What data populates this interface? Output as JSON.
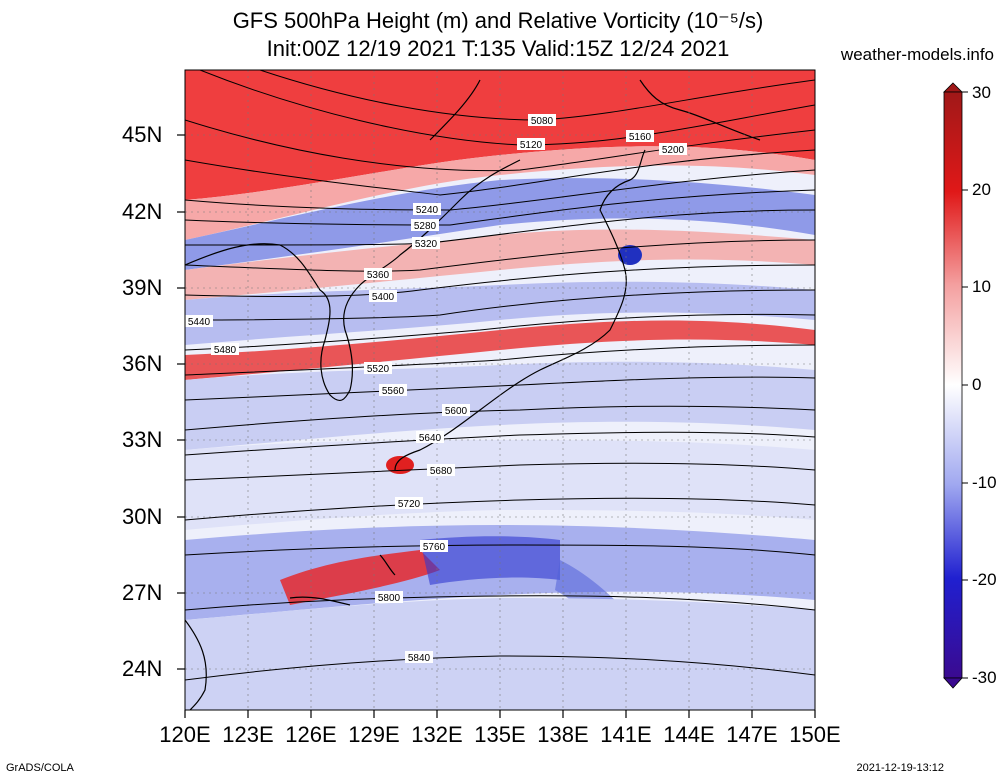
{
  "header": {
    "title_line1": "GFS 500hPa Height (m) and Relative Vorticity (10⁻⁵/s)",
    "title_line2": "Init:00Z 12/19 2021 T:135 Valid:15Z 12/24 2021",
    "site": "weather-models.info"
  },
  "axes": {
    "lat_labels": [
      "45N",
      "42N",
      "39N",
      "36N",
      "33N",
      "30N",
      "27N",
      "24N"
    ],
    "lon_labels": [
      "120E",
      "123E",
      "126E",
      "129E",
      "132E",
      "135E",
      "138E",
      "141E",
      "144E",
      "147E",
      "150E"
    ]
  },
  "colorbar": {
    "labels": [
      "30",
      "20",
      "10",
      "0",
      "-10",
      "-20",
      "-30"
    ],
    "colors": [
      "#a01818",
      "#e01818",
      "#f4a0a0",
      "#ffffff",
      "#a0a8f0",
      "#2020d0",
      "#3a0a90"
    ]
  },
  "contours": {
    "labels": [
      "5080",
      "5120",
      "5160",
      "5200",
      "5240",
      "5280",
      "5320",
      "5360",
      "5400",
      "5440",
      "5480",
      "5520",
      "5560",
      "5600",
      "5640",
      "5680",
      "5720",
      "5760",
      "5800",
      "5840"
    ]
  },
  "footer": {
    "left": "GrADS/COLA",
    "right": "2021-12-19-13:12"
  }
}
